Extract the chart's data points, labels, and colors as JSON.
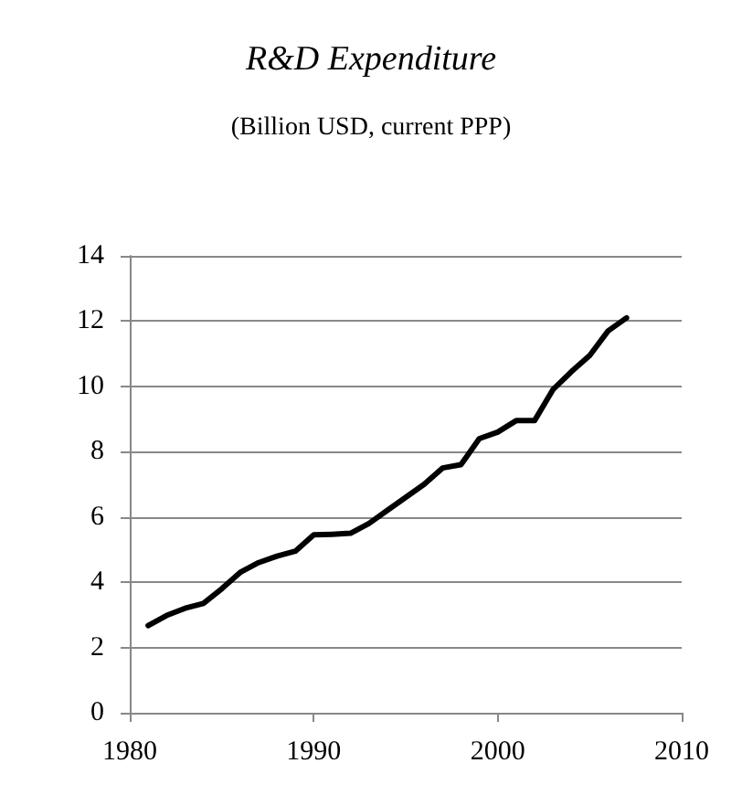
{
  "chart_data": {
    "type": "line",
    "title": "R&D Expenditure",
    "subtitle": "(Billion USD, current PPP)",
    "x": [
      1981,
      1982,
      1983,
      1984,
      1985,
      1986,
      1987,
      1988,
      1989,
      1990,
      1991,
      1992,
      1993,
      1994,
      1995,
      1996,
      1997,
      1998,
      1999,
      2000,
      2001,
      2002,
      2003,
      2004,
      2005,
      2006,
      2007
    ],
    "series": [
      {
        "color": "#000000",
        "values": [
          2.67,
          2.98,
          3.2,
          3.35,
          3.8,
          4.3,
          4.6,
          4.8,
          4.95,
          5.45,
          5.47,
          5.5,
          5.8,
          6.2,
          6.6,
          7.0,
          7.5,
          7.6,
          8.4,
          8.6,
          8.95,
          8.95,
          9.9,
          10.45,
          10.95,
          11.7,
          12.1
        ]
      }
    ],
    "xlim": [
      1980,
      2010
    ],
    "xticks": [
      1980,
      1990,
      2000,
      2010
    ],
    "ylim": [
      0,
      14
    ],
    "yticks": [
      0,
      2,
      4,
      6,
      8,
      10,
      12,
      14
    ],
    "grid": "y",
    "marker": "none",
    "line_style": "solid"
  }
}
